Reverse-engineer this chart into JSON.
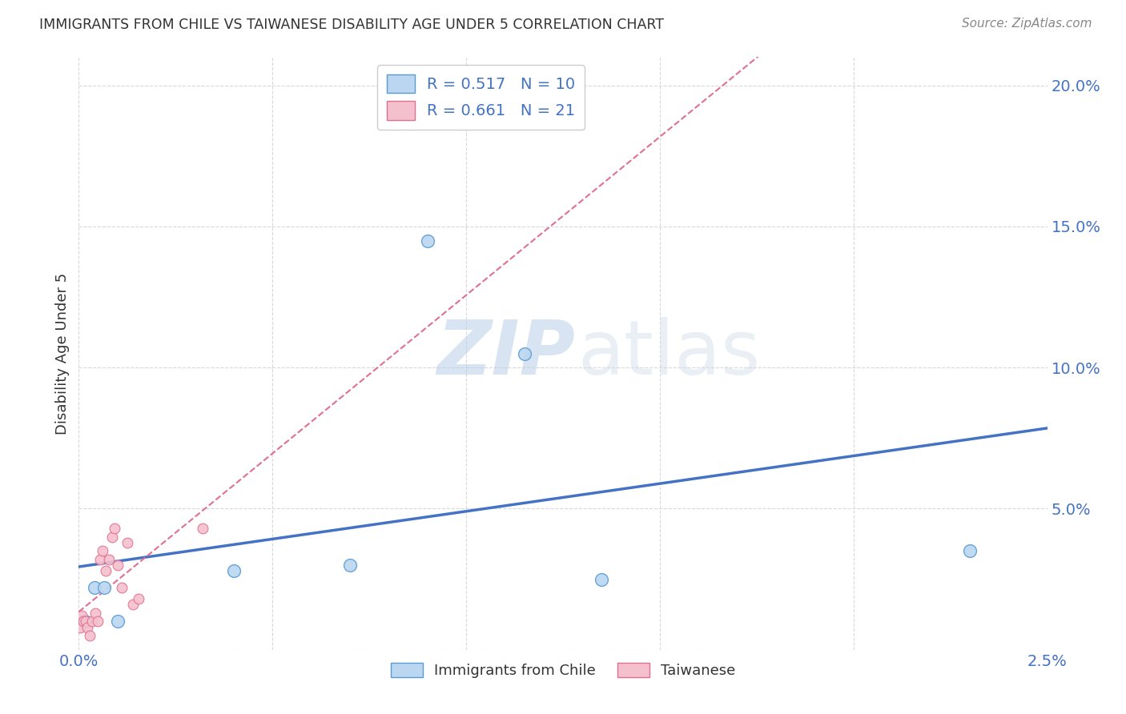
{
  "title": "IMMIGRANTS FROM CHILE VS TAIWANESE DISABILITY AGE UNDER 5 CORRELATION CHART",
  "source": "Source: ZipAtlas.com",
  "ylabel": "Disability Age Under 5",
  "xlim": [
    0.0,
    0.025
  ],
  "ylim": [
    0.0,
    0.21
  ],
  "xticks": [
    0.0,
    0.005,
    0.01,
    0.015,
    0.02,
    0.025
  ],
  "xtick_labels": [
    "0.0%",
    "",
    "",
    "",
    "",
    "2.5%"
  ],
  "yticks": [
    0.0,
    0.05,
    0.1,
    0.15,
    0.2
  ],
  "ytick_labels": [
    "",
    "5.0%",
    "10.0%",
    "15.0%",
    "20.0%"
  ],
  "background_color": "#ffffff",
  "grid_color": "#d8d8d8",
  "chile_x": [
    0.00015,
    0.0004,
    0.00065,
    0.001,
    0.004,
    0.007,
    0.0115,
    0.0135,
    0.023,
    0.009
  ],
  "chile_y": [
    0.01,
    0.022,
    0.022,
    0.01,
    0.028,
    0.03,
    0.105,
    0.025,
    0.035,
    0.145
  ],
  "chile_color": "#bad6f0",
  "chile_edge_color": "#5b9bd5",
  "chile_size": 130,
  "taiwan_x": [
    4e-05,
    8e-05,
    0.00012,
    0.00017,
    0.00022,
    0.00028,
    0.00035,
    0.00042,
    0.00048,
    0.00055,
    0.00062,
    0.0007,
    0.00078,
    0.00085,
    0.00092,
    0.001,
    0.0011,
    0.00125,
    0.0014,
    0.00155,
    0.0032
  ],
  "taiwan_y": [
    0.008,
    0.012,
    0.01,
    0.01,
    0.008,
    0.005,
    0.01,
    0.013,
    0.01,
    0.032,
    0.035,
    0.028,
    0.032,
    0.04,
    0.043,
    0.03,
    0.022,
    0.038,
    0.016,
    0.018,
    0.043
  ],
  "taiwan_color": "#f4c0ce",
  "taiwan_edge_color": "#e07090",
  "taiwan_size": 85,
  "chile_R": 0.517,
  "chile_N": 10,
  "taiwan_R": 0.661,
  "taiwan_N": 21,
  "legend_blue_label": "Immigrants from Chile",
  "legend_pink_label": "Taiwanese",
  "blue_line_color": "#4472c4",
  "pink_line_color": "#e07090"
}
